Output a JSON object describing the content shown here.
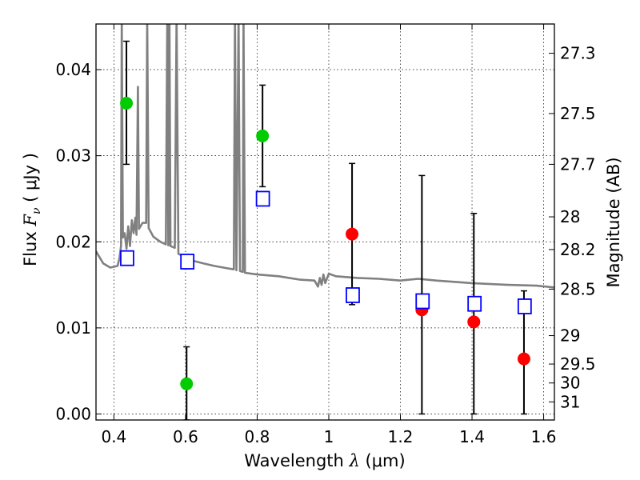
{
  "chart_data": {
    "type": "scatter",
    "title": "",
    "xlabel": {
      "prefix": "Wavelength  ",
      "symbol": "λ",
      "unit": " (μm)"
    },
    "ylabel": {
      "prefix": "Flux  ",
      "symbol": "F",
      "subscript": "ν",
      "unit": "  ( μJy )"
    },
    "y2label": "Magnitude (AB)",
    "xlim": [
      0.35,
      1.63
    ],
    "ylim": [
      -0.0007,
      0.0453
    ],
    "grid": true,
    "x_ticks": [
      {
        "value": 0.4,
        "label": "0.4"
      },
      {
        "value": 0.6,
        "label": "0.6"
      },
      {
        "value": 0.8,
        "label": "0.8"
      },
      {
        "value": 1.0,
        "label": "1"
      },
      {
        "value": 1.2,
        "label": "1.2"
      },
      {
        "value": 1.4,
        "label": "1.4"
      },
      {
        "value": 1.6,
        "label": "1.6"
      }
    ],
    "y_ticks": [
      {
        "value": 0.0,
        "label": "0.00"
      },
      {
        "value": 0.01,
        "label": "0.01"
      },
      {
        "value": 0.02,
        "label": "0.02"
      },
      {
        "value": 0.03,
        "label": "0.03"
      },
      {
        "value": 0.04,
        "label": "0.04"
      }
    ],
    "mag_ticks": [
      {
        "flux": 0.0419,
        "label": "27.3"
      },
      {
        "flux": 0.0349,
        "label": "27.5"
      },
      {
        "flux": 0.029,
        "label": "27.7"
      },
      {
        "flux": 0.0229,
        "label": "28"
      },
      {
        "flux": 0.0191,
        "label": "28.2"
      },
      {
        "flux": 0.0145,
        "label": "28.5"
      },
      {
        "flux": 0.0091,
        "label": "29"
      },
      {
        "flux": 0.0058,
        "label": "29.5"
      },
      {
        "flux": 0.0036,
        "label": "30"
      },
      {
        "flux": 0.0014,
        "label": "31"
      }
    ],
    "series": [
      {
        "name": "model SED",
        "kind": "line",
        "color": "#808080",
        "points": [
          [
            0.35,
            0.0189
          ],
          [
            0.37,
            0.0175
          ],
          [
            0.39,
            0.017
          ],
          [
            0.41,
            0.0172
          ],
          [
            0.415,
            0.018
          ],
          [
            0.42,
            0.0195
          ],
          [
            0.422,
            0.046
          ],
          [
            0.425,
            0.0205
          ],
          [
            0.43,
            0.021
          ],
          [
            0.435,
            0.0192
          ],
          [
            0.44,
            0.0218
          ],
          [
            0.445,
            0.0195
          ],
          [
            0.45,
            0.0225
          ],
          [
            0.455,
            0.021
          ],
          [
            0.46,
            0.0228
          ],
          [
            0.463,
            0.0208
          ],
          [
            0.467,
            0.038
          ],
          [
            0.47,
            0.0215
          ],
          [
            0.48,
            0.0222
          ],
          [
            0.49,
            0.0222
          ],
          [
            0.493,
            0.046
          ],
          [
            0.497,
            0.0216
          ],
          [
            0.51,
            0.0206
          ],
          [
            0.53,
            0.02
          ],
          [
            0.545,
            0.0197
          ],
          [
            0.549,
            0.046
          ],
          [
            0.552,
            0.0196
          ],
          [
            0.555,
            0.046
          ],
          [
            0.558,
            0.0195
          ],
          [
            0.57,
            0.0193
          ],
          [
            0.575,
            0.046
          ],
          [
            0.58,
            0.0186
          ],
          [
            0.6,
            0.0182
          ],
          [
            0.62,
            0.0178
          ],
          [
            0.65,
            0.0175
          ],
          [
            0.68,
            0.0172
          ],
          [
            0.72,
            0.0169
          ],
          [
            0.735,
            0.0168
          ],
          [
            0.738,
            0.046
          ],
          [
            0.742,
            0.0167
          ],
          [
            0.748,
            0.046
          ],
          [
            0.752,
            0.0166
          ],
          [
            0.76,
            0.0165
          ],
          [
            0.762,
            0.046
          ],
          [
            0.766,
            0.0164
          ],
          [
            0.8,
            0.0162
          ],
          [
            0.86,
            0.016
          ],
          [
            0.92,
            0.0156
          ],
          [
            0.96,
            0.0155
          ],
          [
            0.97,
            0.0148
          ],
          [
            0.975,
            0.0158
          ],
          [
            0.98,
            0.015
          ],
          [
            0.985,
            0.0162
          ],
          [
            0.99,
            0.0152
          ],
          [
            1.0,
            0.0163
          ],
          [
            1.02,
            0.016
          ],
          [
            1.08,
            0.0158
          ],
          [
            1.14,
            0.0157
          ],
          [
            1.2,
            0.0155
          ],
          [
            1.25,
            0.0157
          ],
          [
            1.3,
            0.0155
          ],
          [
            1.4,
            0.0152
          ],
          [
            1.5,
            0.015
          ],
          [
            1.58,
            0.0149
          ],
          [
            1.63,
            0.0147
          ]
        ]
      },
      {
        "name": "observed (green)",
        "kind": "points",
        "marker": "circle",
        "color": "#00cc00",
        "points": [
          {
            "x": 0.435,
            "y": 0.0361,
            "err_lo": 0.0071,
            "err_hi": 0.0072
          },
          {
            "x": 0.603,
            "y": 0.0035,
            "err_lo": 0.0042,
            "err_hi": 0.0043
          },
          {
            "x": 0.815,
            "y": 0.0323,
            "err_lo": 0.0059,
            "err_hi": 0.0059
          }
        ]
      },
      {
        "name": "observed (red)",
        "kind": "points",
        "marker": "circle",
        "color": "#ff0000",
        "points": [
          {
            "x": 1.065,
            "y": 0.0209,
            "err_lo": 0.0082,
            "err_hi": 0.0082
          },
          {
            "x": 1.26,
            "y": 0.0121,
            "err_lo": 0.0121,
            "err_hi": 0.0156
          },
          {
            "x": 1.405,
            "y": 0.0107,
            "err_lo": 0.0107,
            "err_hi": 0.0126
          },
          {
            "x": 1.545,
            "y": 0.0064,
            "err_lo": 0.0064,
            "err_hi": 0.0079
          }
        ]
      },
      {
        "name": "model photometry",
        "kind": "points",
        "marker": "square",
        "color": "#0000ff",
        "points": [
          {
            "x": 0.437,
            "y": 0.0181
          },
          {
            "x": 0.605,
            "y": 0.0177
          },
          {
            "x": 0.816,
            "y": 0.025
          },
          {
            "x": 1.067,
            "y": 0.0138
          },
          {
            "x": 1.262,
            "y": 0.0131
          },
          {
            "x": 1.407,
            "y": 0.0128
          },
          {
            "x": 1.547,
            "y": 0.0125
          }
        ]
      }
    ]
  }
}
